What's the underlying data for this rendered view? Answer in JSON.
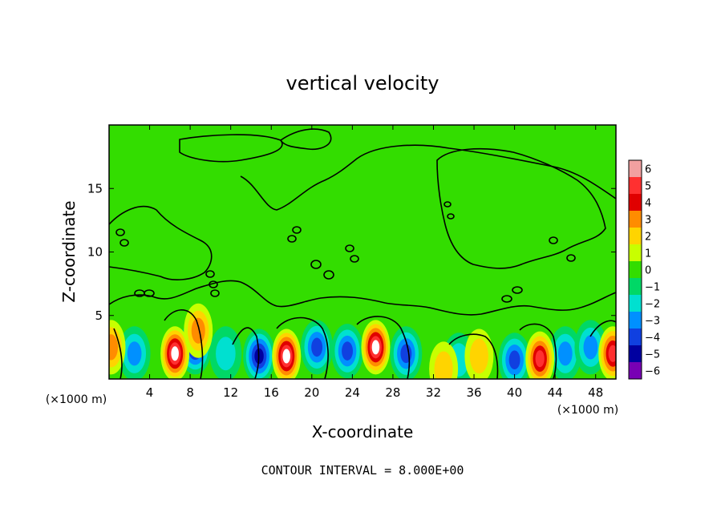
{
  "chart_data": {
    "type": "heatmap",
    "title": "vertical velocity",
    "xlabel": "X-coordinate",
    "ylabel": "Z-coordinate",
    "x_unit_note": "(×1000 m)",
    "x_unit_note_right": "(×1000 m)",
    "z_unit_note": "(×1000 m)",
    "xlim": [
      0,
      50
    ],
    "ylim": [
      0,
      20
    ],
    "xticks": [
      4,
      8,
      12,
      16,
      20,
      24,
      28,
      32,
      36,
      40,
      44,
      48
    ],
    "xtick_labels": [
      "4",
      "8",
      "12",
      "16",
      "20",
      "24",
      "28",
      "32",
      "36",
      "40",
      "44",
      "48"
    ],
    "yticks": [
      5,
      10,
      15
    ],
    "ytick_labels": [
      "5",
      "10",
      "15"
    ],
    "colorbar": {
      "levels": [
        6,
        5,
        4,
        3,
        2,
        1,
        0,
        -1,
        -2,
        -3,
        -4,
        -5,
        -6
      ],
      "labels": [
        "6",
        "5",
        "4",
        "3",
        "2",
        "1",
        "0",
        "−1",
        "−2",
        "−3",
        "−4",
        "−5",
        "−6"
      ],
      "colors": [
        "#f2a0a0",
        "#ff3030",
        "#e00000",
        "#ff8c00",
        "#ffd400",
        "#c8ff00",
        "#33dd00",
        "#00d866",
        "#00e0d0",
        "#0090ff",
        "#1040e0",
        "#0000a0",
        "#7800b4"
      ]
    },
    "updrafts": [
      {
        "x": 6.5,
        "z": 2.0,
        "w": 6
      },
      {
        "x": 17.5,
        "z": 1.8,
        "w": 6
      },
      {
        "x": 26.3,
        "z": 2.5,
        "w": 6
      },
      {
        "x": 42.5,
        "z": 1.6,
        "w": 5
      },
      {
        "x": 49.7,
        "z": 2.0,
        "w": 5
      },
      {
        "x": 0.2,
        "z": 2.5,
        "w": 3
      },
      {
        "x": 36.5,
        "z": 1.8,
        "w": 2
      },
      {
        "x": 8.8,
        "z": 3.8,
        "w": 3
      },
      {
        "x": 33.0,
        "z": 0.8,
        "w": 2
      }
    ],
    "downdrafts": [
      {
        "x": 2.5,
        "z": 2.0,
        "w": -3
      },
      {
        "x": 8.5,
        "z": 2.5,
        "w": -5
      },
      {
        "x": 14.8,
        "z": 1.8,
        "w": -5
      },
      {
        "x": 20.5,
        "z": 2.5,
        "w": -4
      },
      {
        "x": 23.5,
        "z": 2.2,
        "w": -4
      },
      {
        "x": 29.3,
        "z": 2.0,
        "w": -4
      },
      {
        "x": 40.0,
        "z": 1.5,
        "w": -4
      },
      {
        "x": 45.0,
        "z": 2.0,
        "w": -3
      },
      {
        "x": 47.5,
        "z": 2.5,
        "w": -3
      },
      {
        "x": 34.5,
        "z": 1.5,
        "w": -2
      },
      {
        "x": 11.5,
        "z": 2.0,
        "w": -2
      }
    ],
    "contour_interval": "CONTOUR INTERVAL = 8.000E+00"
  }
}
